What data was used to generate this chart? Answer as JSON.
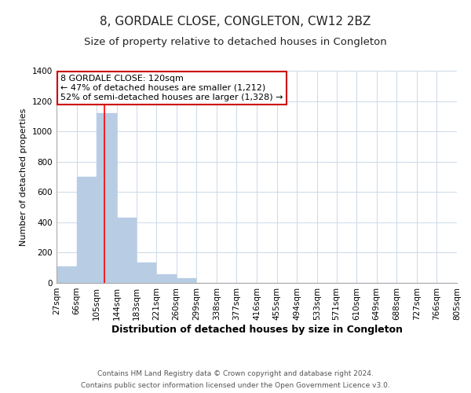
{
  "title": "8, GORDALE CLOSE, CONGLETON, CW12 2BZ",
  "subtitle": "Size of property relative to detached houses in Congleton",
  "xlabel": "Distribution of detached houses by size in Congleton",
  "ylabel": "Number of detached properties",
  "bin_edges": [
    27,
    66,
    105,
    144,
    183,
    221,
    260,
    299,
    338,
    377,
    416,
    455,
    494,
    533,
    571,
    610,
    649,
    688,
    727,
    766,
    805
  ],
  "bin_labels": [
    "27sqm",
    "66sqm",
    "105sqm",
    "144sqm",
    "183sqm",
    "221sqm",
    "260sqm",
    "299sqm",
    "338sqm",
    "377sqm",
    "416sqm",
    "455sqm",
    "494sqm",
    "533sqm",
    "571sqm",
    "610sqm",
    "649sqm",
    "688sqm",
    "727sqm",
    "766sqm",
    "805sqm"
  ],
  "counts": [
    110,
    700,
    1120,
    430,
    135,
    57,
    30,
    0,
    0,
    0,
    0,
    0,
    0,
    0,
    0,
    0,
    0,
    0,
    0,
    0
  ],
  "bar_color": "#b8cce4",
  "bar_edge_color": "#b8cce4",
  "red_line_x": 120,
  "ylim": [
    0,
    1400
  ],
  "yticks": [
    0,
    200,
    400,
    600,
    800,
    1000,
    1200,
    1400
  ],
  "annotation_line1": "8 GORDALE CLOSE: 120sqm",
  "annotation_line2": "← 47% of detached houses are smaller (1,212)",
  "annotation_line3": "52% of semi-detached houses are larger (1,328) →",
  "footer1": "Contains HM Land Registry data © Crown copyright and database right 2024.",
  "footer2": "Contains public sector information licensed under the Open Government Licence v3.0.",
  "background_color": "#ffffff",
  "grid_color": "#ccd9e8",
  "title_fontsize": 11,
  "subtitle_fontsize": 9.5,
  "xlabel_fontsize": 9,
  "ylabel_fontsize": 8,
  "tick_fontsize": 7.5,
  "annot_fontsize": 8,
  "footer_fontsize": 6.5
}
